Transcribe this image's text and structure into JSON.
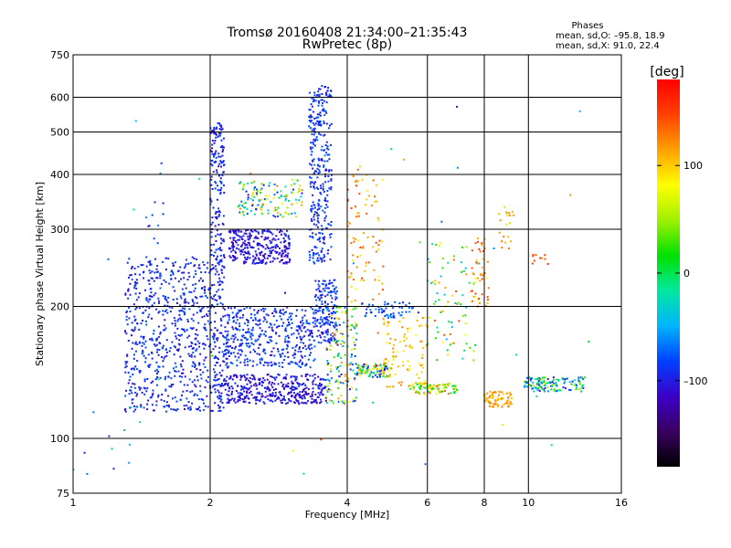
{
  "chart_data": {
    "type": "scatter",
    "title": "Tromsø 20160408 21:34:00–21:35:43",
    "subtitle": "RwPretec (8p)",
    "xlabel": "Frequency [MHz]",
    "ylabel": "Stationary phase Virtual Height [km]",
    "x_scale": "log",
    "y_scale": "log",
    "xlim": [
      1,
      16
    ],
    "ylim": [
      75,
      750
    ],
    "x_ticks": [
      "1",
      "2",
      "4",
      "6",
      "8",
      "10",
      "16"
    ],
    "y_ticks": [
      "75",
      "100",
      "200",
      "300",
      "400",
      "500",
      "600",
      "750"
    ],
    "grid": true,
    "stats": {
      "heading": "Phases",
      "line_o": "mean, sd,O: –95.8, 18.9",
      "line_x": "mean, sd,X:  91.0, 22.4"
    },
    "colorbar": {
      "label": "[deg]",
      "range": [
        -180,
        180
      ],
      "ticks": [
        "100",
        "0",
        "–100"
      ],
      "colors": [
        "#000000",
        "#3a0060",
        "#3b00c8",
        "#0040ff",
        "#00b4ff",
        "#00e8a0",
        "#00e000",
        "#a0f000",
        "#ffff00",
        "#ffa000",
        "#ff4000",
        "#ff0000"
      ]
    },
    "clusters": [
      {
        "x": [
          1.3,
          2.0
        ],
        "y": [
          115,
          260
        ],
        "phase": [
          -110,
          -75
        ],
        "n": 650
      },
      {
        "x": [
          1.4,
          1.6
        ],
        "y": [
          140,
          500
        ],
        "phase": [
          -100,
          -60
        ],
        "n": 20
      },
      {
        "x": [
          2.0,
          2.15
        ],
        "y": [
          115,
          530
        ],
        "phase": [
          -110,
          -80
        ],
        "n": 320
      },
      {
        "x": [
          2.15,
          3.6
        ],
        "y": [
          120,
          140
        ],
        "phase": [
          -120,
          -90
        ],
        "n": 380
      },
      {
        "x": [
          2.15,
          3.4
        ],
        "y": [
          145,
          200
        ],
        "phase": [
          -110,
          -70
        ],
        "n": 420
      },
      {
        "x": [
          2.2,
          3.0
        ],
        "y": [
          250,
          300
        ],
        "phase": [
          -120,
          -90
        ],
        "n": 300
      },
      {
        "x": [
          2.3,
          3.2
        ],
        "y": [
          320,
          390
        ],
        "phase": [
          -110,
          130
        ],
        "n": 130
      },
      {
        "x": [
          3.3,
          3.7
        ],
        "y": [
          250,
          640
        ],
        "phase": [
          -110,
          -70
        ],
        "n": 320
      },
      {
        "x": [
          3.4,
          3.8
        ],
        "y": [
          165,
          230
        ],
        "phase": [
          -110,
          -70
        ],
        "n": 170
      },
      {
        "x": [
          3.6,
          4.2
        ],
        "y": [
          120,
          200
        ],
        "phase": [
          -110,
          140
        ],
        "n": 160
      },
      {
        "x": [
          4.0,
          4.8
        ],
        "y": [
          200,
          420
        ],
        "phase": [
          80,
          150
        ],
        "n": 90
      },
      {
        "x": [
          4.2,
          5.0
        ],
        "y": [
          138,
          148
        ],
        "phase": [
          -120,
          120
        ],
        "n": 100
      },
      {
        "x": [
          4.3,
          5.6
        ],
        "y": [
          188,
          205
        ],
        "phase": [
          -100,
          -60
        ],
        "n": 60
      },
      {
        "x": [
          4.8,
          6.0
        ],
        "y": [
          130,
          190
        ],
        "phase": [
          80,
          130
        ],
        "n": 90
      },
      {
        "x": [
          5.5,
          7.0
        ],
        "y": [
          126,
          134
        ],
        "phase": [
          -20,
          140
        ],
        "n": 90
      },
      {
        "x": [
          6.0,
          7.8
        ],
        "y": [
          150,
          280
        ],
        "phase": [
          -60,
          150
        ],
        "n": 80
      },
      {
        "x": [
          7.5,
          8.2
        ],
        "y": [
          200,
          290
        ],
        "phase": [
          80,
          160
        ],
        "n": 50
      },
      {
        "x": [
          8.0,
          9.2
        ],
        "y": [
          118,
          128
        ],
        "phase": [
          90,
          130
        ],
        "n": 70
      },
      {
        "x": [
          8.5,
          9.3
        ],
        "y": [
          270,
          340
        ],
        "phase": [
          90,
          130
        ],
        "n": 20
      },
      {
        "x": [
          9.8,
          13.3
        ],
        "y": [
          128,
          138
        ],
        "phase": [
          -115,
          60
        ],
        "n": 130
      },
      {
        "x": [
          10.2,
          11.2
        ],
        "y": [
          250,
          265
        ],
        "phase": [
          120,
          160
        ],
        "n": 10
      },
      {
        "x": [
          1.0,
          1.4
        ],
        "y": [
          80,
          130
        ],
        "phase": [
          -110,
          0
        ],
        "n": 12
      },
      {
        "x": [
          1.0,
          14.0
        ],
        "y": [
          80,
          640
        ],
        "phase": [
          -120,
          150
        ],
        "n": 40
      }
    ]
  }
}
